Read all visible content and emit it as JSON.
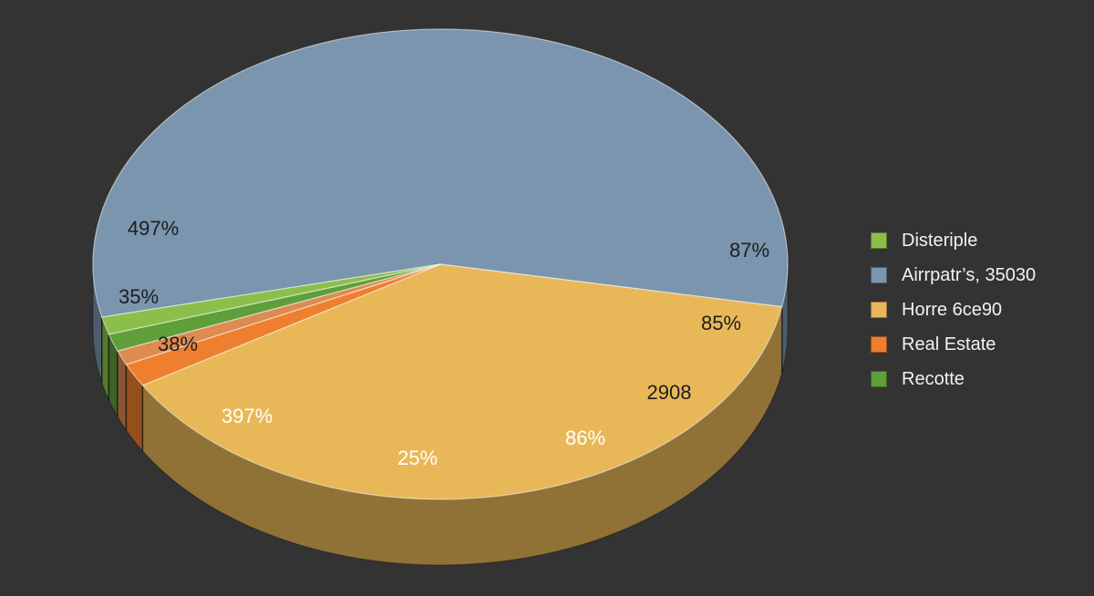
{
  "colors": {
    "background": "#333333",
    "blue": "#7a95ad",
    "yellow": "#e8b858",
    "orange": "#ee7f2f",
    "light_orange": "#df8a50",
    "green": "#5e9f3a",
    "light_green": "#8cbe4a"
  },
  "chart_data": {
    "type": "pie",
    "style": "3d-tilted",
    "title": "",
    "slices": [
      {
        "legend_ref": 1,
        "share_pct": 56.5,
        "color": "#7a95ad"
      },
      {
        "legend_ref": 2,
        "share_pct": 38.5,
        "color": "#e8b858"
      },
      {
        "legend_ref": 3,
        "share_pct": 1.6,
        "color": "#ee7f2f"
      },
      {
        "legend_ref": null,
        "share_pct": 1.0,
        "color": "#df8a50"
      },
      {
        "legend_ref": 4,
        "share_pct": 1.2,
        "color": "#5e9f3a"
      },
      {
        "legend_ref": 0,
        "share_pct": 1.2,
        "color": "#8cbe4a"
      }
    ],
    "data_labels": [
      {
        "text": "497%",
        "color": "#1e1e1e"
      },
      {
        "text": "35%",
        "color": "#1e1e1e"
      },
      {
        "text": "38%",
        "color": "#1e1e1e"
      },
      {
        "text": "397%",
        "color": "#ffffff"
      },
      {
        "text": "25%",
        "color": "#ffffff"
      },
      {
        "text": "86%",
        "color": "#ffffff"
      },
      {
        "text": "2908",
        "color": "#1e1e1e"
      },
      {
        "text": "85%",
        "color": "#1e1e1e"
      },
      {
        "text": "87%",
        "color": "#1e1e1e"
      }
    ],
    "legend": {
      "position": "right",
      "items": [
        {
          "label": "Disteriple",
          "color": "#8cbe4a"
        },
        {
          "label": "Airrpatr’s, 35030",
          "color": "#7a95ad"
        },
        {
          "label": "Horre 6ce90",
          "color": "#e8b858"
        },
        {
          "label": "Real Estate",
          "color": "#ee7f2f"
        },
        {
          "label": "Recotte",
          "color": "#5e9f3a"
        }
      ]
    }
  }
}
